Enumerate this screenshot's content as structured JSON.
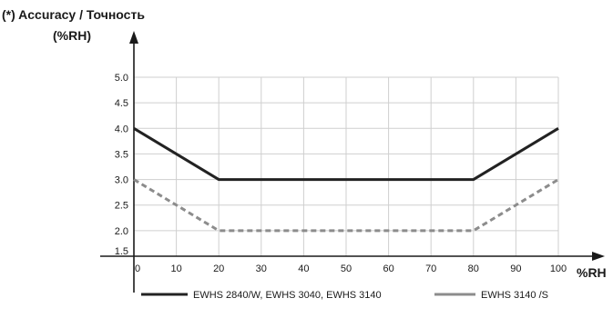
{
  "chart_data": {
    "type": "line",
    "title": "(*) Accuracy / Точность",
    "ylabel": "(%RH)",
    "xlabel": "%RH",
    "xlim": [
      0,
      100
    ],
    "ylim": [
      1.5,
      5.0
    ],
    "x_ticks": [
      "0",
      "10",
      "20",
      "30",
      "40",
      "50",
      "60",
      "70",
      "80",
      "90",
      "100"
    ],
    "y_ticks": [
      "5.0",
      "4.5",
      "4.0",
      "3.5",
      "3.0",
      "2.5",
      "2.0",
      "1.5"
    ],
    "grid": true,
    "legend_position": "bottom",
    "series": [
      {
        "name": "EWHS 2840/W, EWHS 3040, EWHS 3140",
        "style": "solid",
        "color": "#222222",
        "x": [
          0,
          20,
          80,
          100
        ],
        "y": [
          4.0,
          3.0,
          3.0,
          4.0
        ]
      },
      {
        "name": "EWHS 3140 /S",
        "style": "dashed",
        "color": "#8c8c8c",
        "x": [
          0,
          20,
          80,
          100
        ],
        "y": [
          3.0,
          2.0,
          2.0,
          3.0
        ]
      }
    ]
  }
}
